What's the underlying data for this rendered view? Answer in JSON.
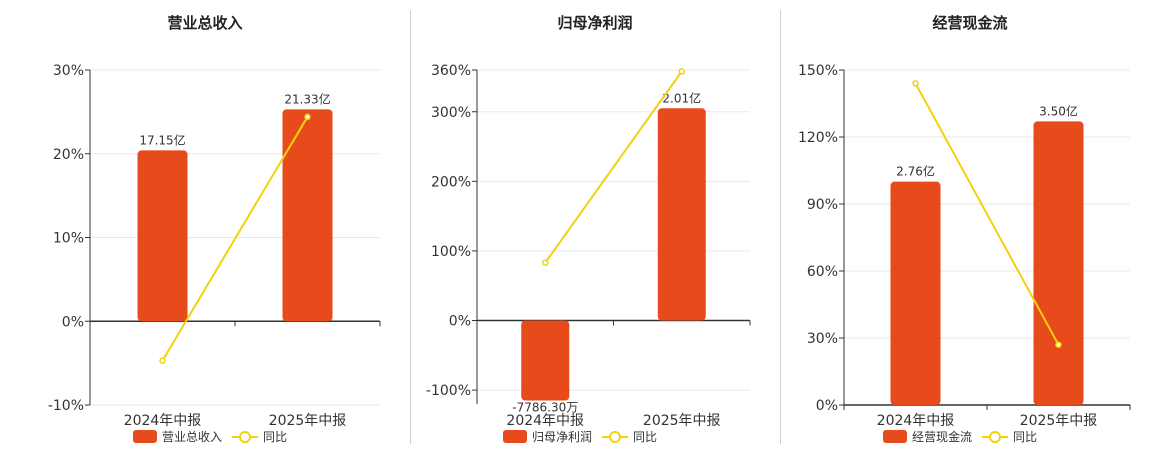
{
  "colors": {
    "bar": "#e84b1b",
    "line": "#f2d10e",
    "axis": "#333333",
    "grid": "#e6e8f0",
    "divider": "#cfcfcf"
  },
  "chart_data": [
    {
      "type": "bar",
      "title": "营业总收入",
      "categories": [
        "2024年中报",
        "2025年中报"
      ],
      "yticks": [
        "30%",
        "20%",
        "10%",
        "0%",
        "-10%"
      ],
      "ylim": [
        -10,
        30
      ],
      "series": [
        {
          "name": "营业总收入",
          "type": "bar",
          "values": [
            20.4,
            25.3
          ],
          "labels": [
            "17.15亿",
            "21.33亿"
          ]
        },
        {
          "name": "同比",
          "type": "line",
          "values": [
            -4.7,
            24.4
          ]
        }
      ]
    },
    {
      "type": "bar",
      "title": "归母净利润",
      "categories": [
        "2024年中报",
        "2025年中报"
      ],
      "yticks": [
        "360%",
        "300%",
        "200%",
        "100%",
        "0%",
        "-100%"
      ],
      "ylim": [
        -120,
        360
      ],
      "series": [
        {
          "name": "归母净利润",
          "type": "bar",
          "values": [
            -115,
            305
          ],
          "labels": [
            "-7786.30万",
            "2.01亿"
          ]
        },
        {
          "name": "同比",
          "type": "line",
          "values": [
            83,
            358
          ]
        }
      ]
    },
    {
      "type": "bar",
      "title": "经营现金流",
      "categories": [
        "2024年中报",
        "2025年中报"
      ],
      "yticks": [
        "150%",
        "120%",
        "90%",
        "60%",
        "30%",
        "0%"
      ],
      "ylim": [
        0,
        150
      ],
      "series": [
        {
          "name": "经营现金流",
          "type": "bar",
          "values": [
            100,
            127
          ],
          "labels": [
            "2.76亿",
            "3.50亿"
          ]
        },
        {
          "name": "同比",
          "type": "line",
          "values": [
            144,
            27
          ]
        }
      ]
    }
  ],
  "legend_line_label": "同比"
}
